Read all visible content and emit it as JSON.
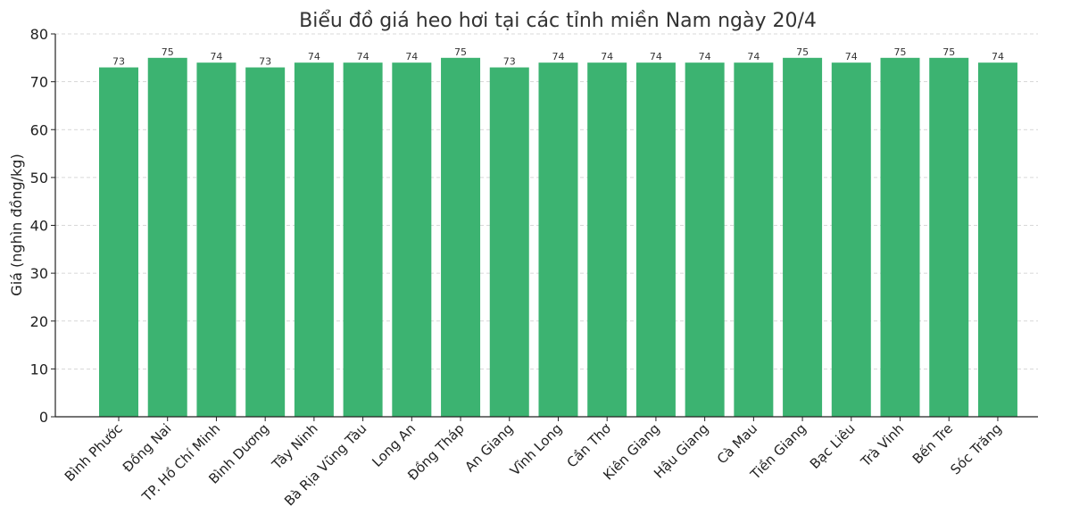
{
  "chart_data": {
    "type": "bar",
    "title": "Biểu đồ giá heo hơi tại các tỉnh miền Nam ngày 20/4",
    "xlabel": "",
    "ylabel": "Giá (nghìn đồng/kg)",
    "ylim": [
      0,
      80
    ],
    "yticks": [
      0,
      10,
      20,
      30,
      40,
      50,
      60,
      70,
      80
    ],
    "grid": true,
    "bar_color": "#3cb371",
    "categories": [
      "Bình Phước",
      "Đồng Nai",
      "TP. Hồ Chí Minh",
      "Bình Dương",
      "Tây Ninh",
      "Bà Rịa Vũng Tàu",
      "Long An",
      "Đồng Tháp",
      "An Giang",
      "Vĩnh Long",
      "Cần Thơ",
      "Kiên Giang",
      "Hậu Giang",
      "Cà Mau",
      "Tiền Giang",
      "Bạc Liêu",
      "Trà Vinh",
      "Bến Tre",
      "Sóc Trăng"
    ],
    "values": [
      73,
      75,
      74,
      73,
      74,
      74,
      74,
      75,
      73,
      74,
      74,
      74,
      74,
      74,
      75,
      74,
      75,
      75,
      74
    ]
  }
}
